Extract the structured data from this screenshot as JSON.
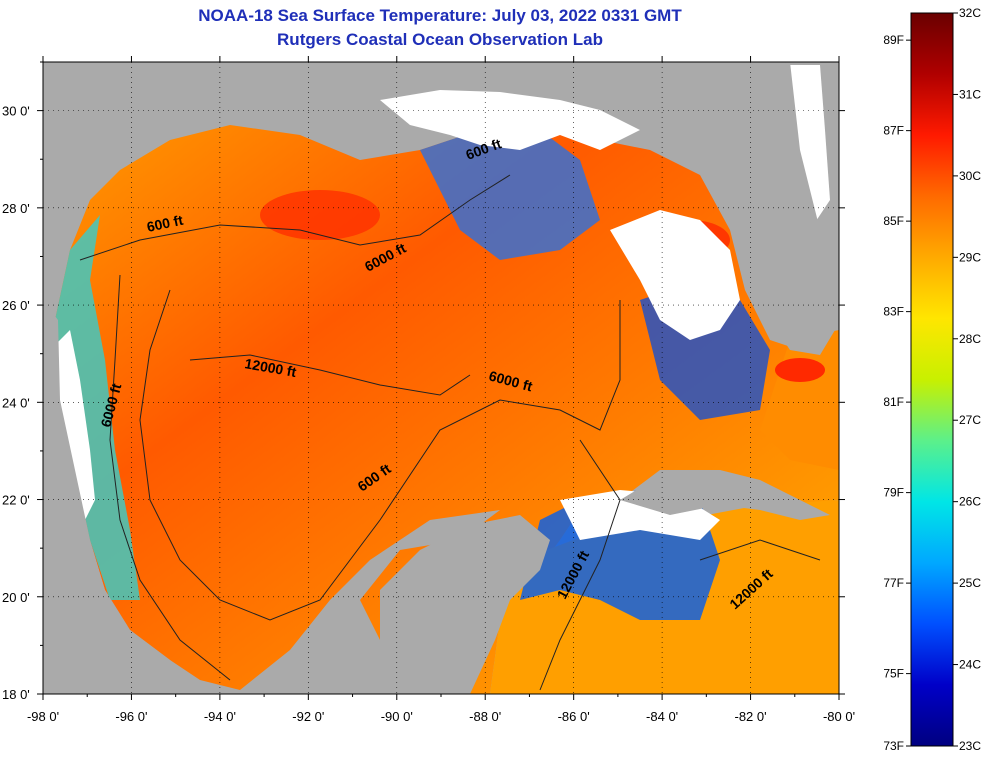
{
  "title": "NOAA-18 Sea Surface Temperature:  July 03, 2022 0331 GMT",
  "subtitle": "Rutgers Coastal Ocean Observation Lab",
  "map": {
    "lon_range": [
      -98,
      -80
    ],
    "lat_range": [
      18,
      31
    ],
    "lon_ticks": [
      "-98 0'",
      "-96 0'",
      "-94 0'",
      "-92 0'",
      "-90 0'",
      "-88 0'",
      "-86 0'",
      "-84 0'",
      "-82 0'",
      "-80 0'"
    ],
    "lat_ticks": [
      "18 0'",
      "20 0'",
      "22 0'",
      "24 0'",
      "26 0'",
      "28 0'",
      "30 0'"
    ],
    "contour_labels": [
      "600 ft",
      "600 ft",
      "600 ft",
      "6000 ft",
      "6000 ft",
      "6000 ft",
      "12000 ft",
      "12000 ft",
      "12000 ft"
    ],
    "land_color": "#aaaaaa",
    "cloud_color": "#ffffff"
  },
  "colorbar": {
    "fahrenheit_labels": [
      "89F",
      "87F",
      "85F",
      "83F",
      "81F",
      "79F",
      "77F",
      "75F",
      "73F"
    ],
    "celsius_labels": [
      "32C",
      "31C",
      "30C",
      "29C",
      "28C",
      "27C",
      "26C",
      "25C",
      "24C",
      "23C"
    ],
    "colors": [
      "#6a0000",
      "#b00000",
      "#ff1a00",
      "#ff6a00",
      "#ffaa00",
      "#ffe600",
      "#c8f000",
      "#5cf08a",
      "#00e6e6",
      "#00a8ff",
      "#0050ff",
      "#0000c8",
      "#000080"
    ]
  }
}
